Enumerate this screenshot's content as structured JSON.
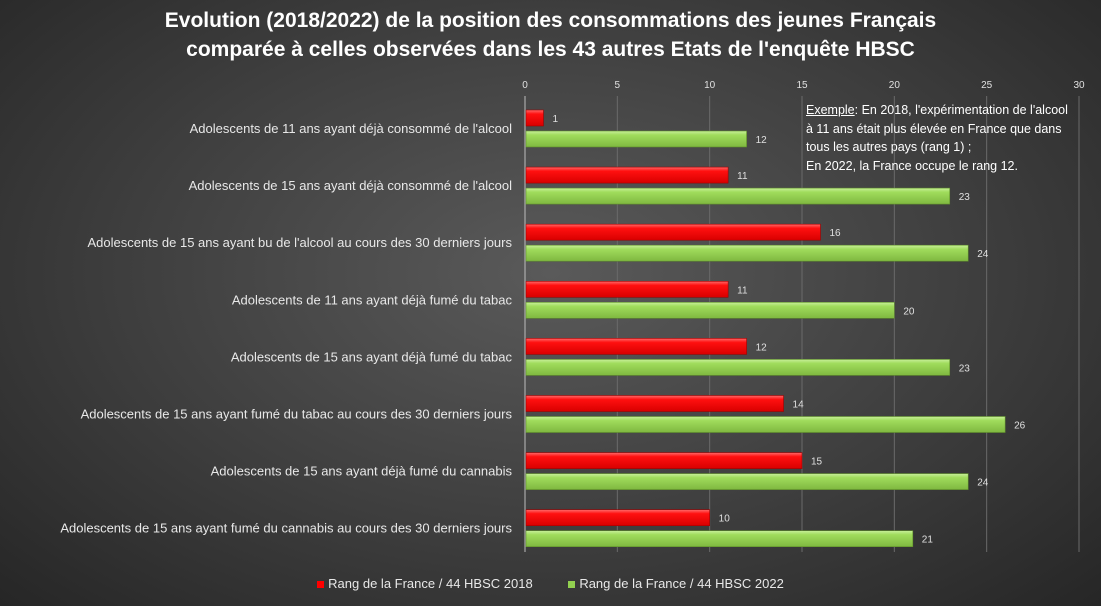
{
  "chart_data": {
    "type": "bar",
    "orientation": "horizontal",
    "title": [
      "Evolution (2018/2022)  de la position des consommations des jeunes Français",
      "comparée à celles observées dans les 43 autres Etats de l'enquête HBSC"
    ],
    "categories": [
      "Adolescents de 11 ans ayant déjà consommé de l'alcool",
      "Adolescents de 15 ans ayant déjà consommé de l'alcool",
      "Adolescents de 15 ans ayant bu de l'alcool au cours des 30 derniers jours",
      "Adolescents de 11 ans ayant déjà fumé du tabac",
      "Adolescents de 15 ans ayant déjà fumé du tabac",
      "Adolescents de 15 ans ayant fumé du tabac au cours des 30 derniers jours",
      "Adolescents de 15 ans ayant déjà fumé du cannabis",
      "Adolescents de 15 ans ayant fumé du cannabis au cours des 30 derniers jours"
    ],
    "series": [
      {
        "name": "Rang de la France / 44 HBSC 2018",
        "color": "#ff0000",
        "values": [
          1,
          11,
          16,
          11,
          12,
          14,
          15,
          10
        ]
      },
      {
        "name": "Rang de la France / 44 HBSC 2022",
        "color": "#92d050",
        "values": [
          12,
          23,
          24,
          20,
          23,
          26,
          24,
          21
        ]
      }
    ],
    "xlim": [
      0,
      30
    ],
    "xticks": [
      0,
      5,
      10,
      15,
      20,
      25,
      30
    ],
    "grid": true,
    "legend": "bottom",
    "annotation": {
      "label": "Exemple",
      "lines": [
        ": En 2018,  l'expérimentation de l'alcool",
        "à 11  ans était plus élevée en France que dans",
        "tous les autres pays (rang 1) ;",
        "En 2022,  la France occupe le rang 12."
      ]
    }
  }
}
